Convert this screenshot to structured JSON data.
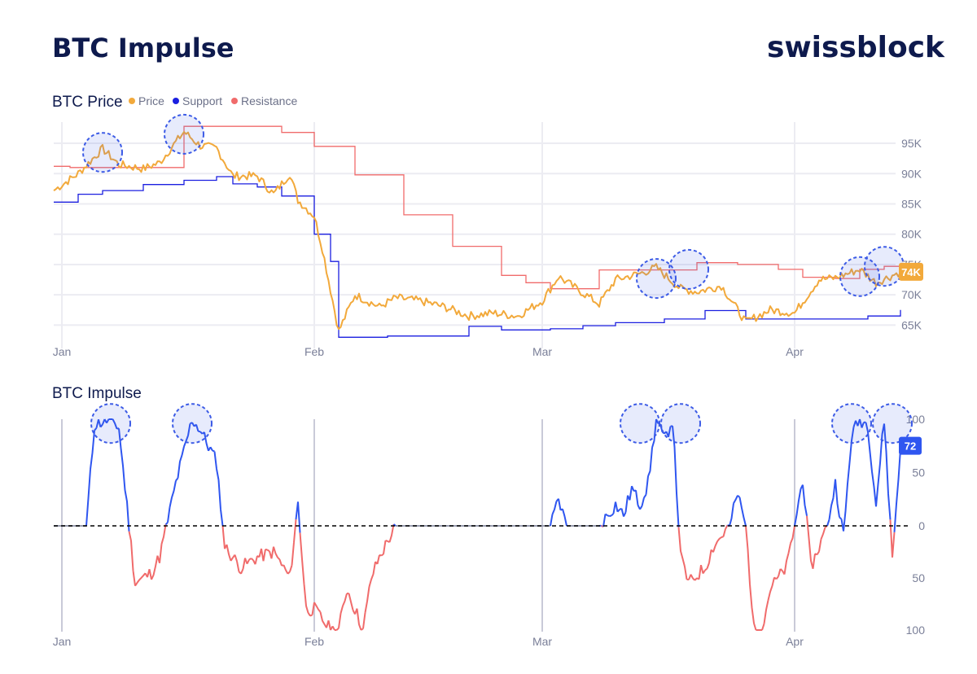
{
  "header": {
    "title": "BTC Impulse",
    "brand": "swissblock"
  },
  "colors": {
    "price": "#f2a93b",
    "support": "#1b1fe0",
    "resistance": "#f06b6b",
    "impulse_positive": "#2f56f0",
    "impulse_negative": "#f06b6b",
    "impulse_neutral": "#9a9eb0",
    "highlight_circle": "#3c5be6",
    "title": "#0e1a4d"
  },
  "chart_data": [
    {
      "type": "line",
      "title": "BTC Price",
      "legend": [
        "Price",
        "Support",
        "Resistance"
      ],
      "legend_position": "top-left",
      "x_axis": {
        "ticks": [
          "Jan",
          "Feb",
          "Mar",
          "Apr"
        ],
        "range": [
          "Dec 31",
          "Apr 14"
        ]
      },
      "y_axis": {
        "ticks": [
          "65K",
          "70K",
          "75K",
          "80K",
          "85K",
          "90K",
          "95K"
        ],
        "range": [
          62500,
          98500
        ],
        "side": "right"
      },
      "grid": true,
      "last_value_label": "74K",
      "series": [
        {
          "name": "Price",
          "x": [
            "Dec 31",
            "Jan 3",
            "Jan 6",
            "Jan 8",
            "Jan 11",
            "Jan 13",
            "Jan 16",
            "Jan 18",
            "Jan 20",
            "Jan 22",
            "Jan 25",
            "Jan 27",
            "Jan 29",
            "Jan 30",
            "Feb 1",
            "Feb 2",
            "Feb 4",
            "Feb 6",
            "Feb 9",
            "Feb 11",
            "Feb 14",
            "Feb 17",
            "Feb 20",
            "Feb 23",
            "Feb 26",
            "Mar 1",
            "Mar 3",
            "Mar 5",
            "Mar 8",
            "Mar 10",
            "Mar 13",
            "Mar 15",
            "Mar 18",
            "Mar 20",
            "Mar 23",
            "Mar 26",
            "Mar 29",
            "Apr 1",
            "Apr 4",
            "Apr 6",
            "Apr 9",
            "Apr 11",
            "Apr 14"
          ],
          "values": [
            87200,
            90000,
            94100,
            91500,
            90800,
            91800,
            96900,
            94600,
            94200,
            89600,
            89600,
            86600,
            90000,
            85600,
            83000,
            77600,
            64000,
            70000,
            68000,
            69500,
            69000,
            68000,
            66500,
            67000,
            66500,
            69000,
            73000,
            71200,
            68500,
            72500,
            73500,
            74500,
            71000,
            70500,
            71500,
            65500,
            67500,
            67000,
            72500,
            72800,
            74200,
            72000,
            73800
          ]
        },
        {
          "name": "Support",
          "x": [
            "Dec 31",
            "Jan 3",
            "Jan 6",
            "Jan 11",
            "Jan 16",
            "Jan 20",
            "Jan 22",
            "Jan 25",
            "Jan 28",
            "Feb 1",
            "Feb 3",
            "Feb 4",
            "Feb 10",
            "Feb 20",
            "Feb 24",
            "Mar 2",
            "Mar 6",
            "Mar 10",
            "Mar 16",
            "Mar 21",
            "Mar 26",
            "Apr 1",
            "Apr 10",
            "Apr 14"
          ],
          "values": [
            85300,
            86600,
            87200,
            88200,
            88900,
            89500,
            88300,
            87800,
            86300,
            80000,
            75500,
            63000,
            63200,
            64800,
            64200,
            64400,
            64900,
            65400,
            66000,
            67400,
            66000,
            66000,
            66500,
            67500
          ]
        },
        {
          "name": "Resistance",
          "x": [
            "Dec 31",
            "Jan 2",
            "Jan 16",
            "Jan 28",
            "Feb 1",
            "Feb 6",
            "Feb 12",
            "Feb 18",
            "Feb 24",
            "Feb 27",
            "Mar 2",
            "Mar 8",
            "Mar 14",
            "Mar 20",
            "Mar 25",
            "Mar 30",
            "Apr 2",
            "Apr 6",
            "Apr 9",
            "Apr 12",
            "Apr 14"
          ],
          "values": [
            91200,
            91000,
            97800,
            96800,
            94500,
            89800,
            83200,
            78000,
            73200,
            72000,
            71000,
            74100,
            74100,
            75300,
            75000,
            74200,
            72900,
            72700,
            74200,
            74700,
            75200
          ]
        }
      ]
    },
    {
      "type": "line",
      "title": "BTC Impulse",
      "x_axis": {
        "ticks": [
          "Jan",
          "Feb",
          "Mar",
          "Apr"
        ],
        "range": [
          "Dec 31",
          "Apr 14"
        ]
      },
      "y_axis": {
        "ticks": [
          "100",
          "50",
          "0",
          "50",
          "100"
        ],
        "range": [
          -100,
          100
        ],
        "side": "right"
      },
      "zero_line": "dashed",
      "last_value_label": "72",
      "series": [
        {
          "name": "Impulse",
          "x": [
            "Dec 31",
            "Jan 4",
            "Jan 5",
            "Jan 7",
            "Jan 8",
            "Jan 10",
            "Jan 12",
            "Jan 13",
            "Jan 15",
            "Jan 17",
            "Jan 18",
            "Jan 20",
            "Jan 21",
            "Jan 23",
            "Jan 25",
            "Jan 27",
            "Jan 29",
            "Jan 30",
            "Jan 31",
            "Feb 1",
            "Feb 3",
            "Feb 4",
            "Feb 5",
            "Feb 7",
            "Feb 8",
            "Feb 9",
            "Feb 10",
            "Feb 11",
            "Feb 12",
            "Feb 13",
            "Feb 15",
            "Feb 18",
            "Feb 21",
            "Feb 24",
            "Feb 27",
            "Mar 1",
            "Mar 2",
            "Mar 3",
            "Mar 4",
            "Mar 6",
            "Mar 8",
            "Mar 10",
            "Mar 11",
            "Mar 12",
            "Mar 13",
            "Mar 14",
            "Mar 15",
            "Mar 16",
            "Mar 17",
            "Mar 18",
            "Mar 19",
            "Mar 21",
            "Mar 22",
            "Mar 24",
            "Mar 25",
            "Mar 26",
            "Mar 27",
            "Mar 28",
            "Mar 29",
            "Mar 31",
            "Apr 1",
            "Apr 2",
            "Apr 3",
            "Apr 4",
            "Apr 5",
            "Apr 6",
            "Apr 7",
            "Apr 8",
            "Apr 9",
            "Apr 10",
            "Apr 11",
            "Apr 12",
            "Apr 13",
            "Apr 14"
          ],
          "values": [
            0,
            0,
            95,
            100,
            92,
            -55,
            -45,
            -30,
            40,
            100,
            90,
            60,
            -20,
            -40,
            -30,
            -25,
            -50,
            22,
            -80,
            -80,
            -100,
            -100,
            -60,
            -100,
            -50,
            -30,
            -15,
            0,
            0,
            0,
            0,
            0,
            0,
            0,
            0,
            0,
            0,
            25,
            0,
            0,
            0,
            20,
            10,
            35,
            20,
            40,
            100,
            80,
            100,
            -30,
            -55,
            -40,
            -20,
            0,
            30,
            0,
            -100,
            -100,
            -60,
            -40,
            0,
            45,
            -40,
            -20,
            0,
            40,
            -10,
            85,
            100,
            95,
            20,
            100,
            -30,
            72
          ]
        }
      ]
    }
  ]
}
